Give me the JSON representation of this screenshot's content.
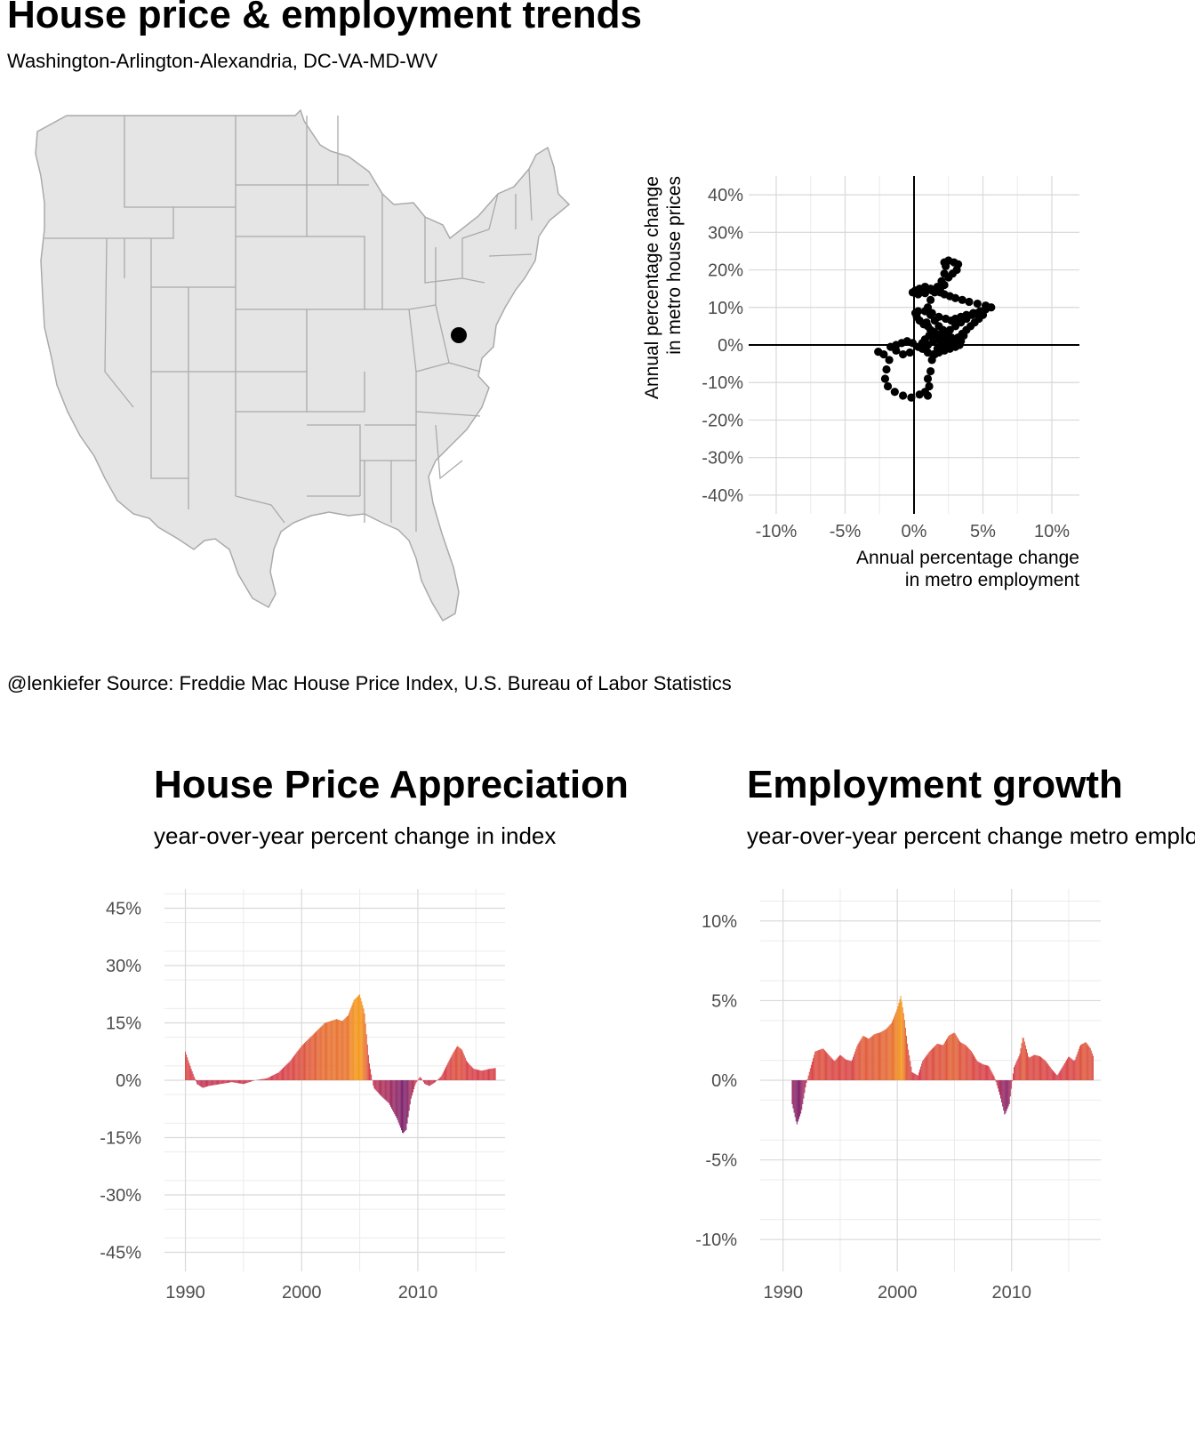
{
  "title": "House price & employment trends",
  "subtitle": "Washington-Arlington-Alexandria, DC-VA-MD-WV",
  "caption": "@lenkiefer Source: Freddie Mac House Price Index, U.S. Bureau of Labor Statistics",
  "colors": {
    "map_fill": "#e5e5e5",
    "map_border": "#aaaaaa",
    "marker": "#000000",
    "bar_low": "#7b1e6a",
    "bar_mid": "#d63c4b",
    "bar_high": "#f59a16"
  },
  "map": {
    "marker_label": "Washington-Arlington-Alexandria, DC-VA-MD-WV"
  },
  "chart_data": [
    {
      "type": "scatter",
      "xlabel": "Annual percentage change\nin metro employment",
      "ylabel": "Annual percentage change\nin metro house prices",
      "xlim": [
        -12,
        12
      ],
      "ylim": [
        -45,
        45
      ],
      "x_ticks": [
        "-10%",
        "-5%",
        "0%",
        "5%",
        "10%"
      ],
      "x_tick_values": [
        -10,
        -5,
        0,
        5,
        10
      ],
      "y_ticks": [
        "40%",
        "30%",
        "20%",
        "10%",
        "0%",
        "-10%",
        "-20%",
        "-30%",
        "-40%"
      ],
      "y_tick_values": [
        40,
        30,
        20,
        10,
        0,
        -10,
        -20,
        -30,
        -40
      ],
      "grid": true,
      "points": [
        [
          -2.6,
          -1.8
        ],
        [
          -2.2,
          -2.5
        ],
        [
          -1.8,
          -4
        ],
        [
          -2.0,
          -6.5
        ],
        [
          -2.1,
          -9
        ],
        [
          -1.9,
          -11
        ],
        [
          -1.4,
          -12.5
        ],
        [
          -0.8,
          -13.5
        ],
        [
          -0.2,
          -14
        ],
        [
          0.4,
          -13.2
        ],
        [
          0.8,
          -12.5
        ],
        [
          1.0,
          -13.5
        ],
        [
          1.1,
          -11
        ],
        [
          1.0,
          -9
        ],
        [
          1.2,
          -7
        ],
        [
          1.3,
          -4
        ],
        [
          1.5,
          -2.5
        ],
        [
          1.7,
          -1
        ],
        [
          1.9,
          0
        ],
        [
          2.2,
          0.5
        ],
        [
          2.5,
          1
        ],
        [
          2.8,
          1.5
        ],
        [
          3.2,
          2
        ],
        [
          3.6,
          2.5
        ],
        [
          3.4,
          1
        ],
        [
          3.0,
          0.5
        ],
        [
          2.4,
          1.5
        ],
        [
          2.0,
          2.5
        ],
        [
          1.6,
          3
        ],
        [
          1.2,
          4
        ],
        [
          1.0,
          5
        ],
        [
          0.9,
          6
        ],
        [
          0.7,
          5.5
        ],
        [
          0.4,
          6.5
        ],
        [
          0.2,
          7.5
        ],
        [
          0.1,
          8.5
        ],
        [
          0.3,
          9
        ],
        [
          0.8,
          9
        ],
        [
          1.3,
          8.5
        ],
        [
          1.8,
          7.5
        ],
        [
          2.3,
          7
        ],
        [
          2.7,
          6.5
        ],
        [
          3.0,
          7
        ],
        [
          3.4,
          7.5
        ],
        [
          3.8,
          8
        ],
        [
          4.3,
          8.5
        ],
        [
          4.8,
          9
        ],
        [
          5.2,
          9.5
        ],
        [
          5.6,
          10
        ],
        [
          5.2,
          10.5
        ],
        [
          4.6,
          11
        ],
        [
          4.0,
          11.5
        ],
        [
          3.5,
          12
        ],
        [
          3.0,
          12.5
        ],
        [
          2.6,
          13
        ],
        [
          2.2,
          13.5
        ],
        [
          1.9,
          14
        ],
        [
          1.6,
          14.5
        ],
        [
          1.2,
          15
        ],
        [
          0.8,
          15.5
        ],
        [
          0.4,
          15
        ],
        [
          0.1,
          14.5
        ],
        [
          -0.1,
          14
        ],
        [
          0.3,
          13.5
        ],
        [
          0.8,
          13.8
        ],
        [
          1.3,
          14.5
        ],
        [
          1.7,
          15.5
        ],
        [
          2.0,
          17
        ],
        [
          2.2,
          19
        ],
        [
          2.3,
          21
        ],
        [
          2.2,
          22
        ],
        [
          2.5,
          22.5
        ],
        [
          2.9,
          22
        ],
        [
          3.2,
          21.5
        ],
        [
          3.1,
          20
        ],
        [
          2.8,
          19
        ],
        [
          2.5,
          18
        ],
        [
          2.2,
          16
        ],
        [
          1.9,
          15
        ],
        [
          1.5,
          14
        ],
        [
          1.2,
          12
        ],
        [
          1.0,
          10
        ],
        [
          1.2,
          8
        ],
        [
          1.5,
          6.5
        ],
        [
          1.8,
          5
        ],
        [
          2.1,
          4
        ],
        [
          2.4,
          3
        ],
        [
          2.7,
          2
        ],
        [
          3.0,
          1
        ],
        [
          3.3,
          0
        ],
        [
          3.0,
          -0.5
        ],
        [
          2.6,
          -1
        ],
        [
          2.2,
          -1.5
        ],
        [
          1.8,
          -2
        ],
        [
          1.4,
          -2.5
        ],
        [
          1.0,
          -2
        ],
        [
          0.7,
          -1
        ],
        [
          0.6,
          0.5
        ],
        [
          0.8,
          1.5
        ],
        [
          1.1,
          2.5
        ],
        [
          1.4,
          3.5
        ],
        [
          1.6,
          2.5
        ],
        [
          1.9,
          1.5
        ],
        [
          2.2,
          0.5
        ],
        [
          2.5,
          -0.5
        ],
        [
          2.8,
          0
        ],
        [
          3.1,
          1
        ],
        [
          3.3,
          2
        ],
        [
          3.5,
          3
        ],
        [
          3.8,
          4
        ],
        [
          4.1,
          5
        ],
        [
          4.4,
          6
        ],
        [
          4.7,
          7
        ],
        [
          5.0,
          8
        ],
        [
          4.6,
          8.5
        ],
        [
          4.2,
          8
        ],
        [
          3.8,
          7
        ],
        [
          3.4,
          6
        ],
        [
          3.0,
          5
        ],
        [
          2.6,
          4
        ],
        [
          2.2,
          3
        ],
        [
          1.8,
          2
        ],
        [
          1.4,
          1
        ],
        [
          1.0,
          0
        ],
        [
          0.6,
          -1
        ],
        [
          0.3,
          -0.5
        ],
        [
          -0.1,
          0.5
        ],
        [
          -0.5,
          1
        ],
        [
          -0.9,
          0.5
        ],
        [
          -1.3,
          0
        ],
        [
          -1.7,
          -0.5
        ],
        [
          -1.3,
          -1.5
        ],
        [
          -0.8,
          -2.5
        ],
        [
          -0.3,
          -2
        ]
      ]
    },
    {
      "type": "bar",
      "title": "House Price Appreciation",
      "subtitle": "year-over-year percent change in index",
      "ylim": [
        -50,
        50
      ],
      "y_ticks": [
        "45%",
        "30%",
        "15%",
        "0%",
        "-15%",
        "-30%",
        "-45%"
      ],
      "y_tick_values": [
        45,
        30,
        15,
        0,
        -15,
        -30,
        -45
      ],
      "x_ticks": [
        "1990",
        "2000",
        "2010"
      ],
      "x_tick_values": [
        1990,
        2000,
        2010
      ],
      "xlim": [
        1988.2,
        2017.5
      ],
      "start": 1990.0,
      "step": 0.0833333,
      "keyframes": [
        [
          1990.0,
          7.5
        ],
        [
          1990.5,
          3
        ],
        [
          1991.0,
          -1
        ],
        [
          1991.5,
          -2
        ],
        [
          1992.0,
          -1.5
        ],
        [
          1993.0,
          -1
        ],
        [
          1994.0,
          -0.5
        ],
        [
          1995.0,
          -1
        ],
        [
          1996.0,
          0
        ],
        [
          1997.0,
          0.5
        ],
        [
          1998.0,
          2
        ],
        [
          1999.0,
          5
        ],
        [
          2000.0,
          9
        ],
        [
          2001.0,
          12
        ],
        [
          2002.0,
          15
        ],
        [
          2003.0,
          16
        ],
        [
          2003.5,
          15.5
        ],
        [
          2004.0,
          17
        ],
        [
          2004.5,
          21
        ],
        [
          2005.0,
          22.5
        ],
        [
          2005.4,
          18
        ],
        [
          2005.8,
          5
        ],
        [
          2006.2,
          -2
        ],
        [
          2006.8,
          -4
        ],
        [
          2007.5,
          -6
        ],
        [
          2008.2,
          -10
        ],
        [
          2008.7,
          -14
        ],
        [
          2009.0,
          -13
        ],
        [
          2009.4,
          -5
        ],
        [
          2009.8,
          -1
        ],
        [
          2010.2,
          1
        ],
        [
          2010.6,
          -1
        ],
        [
          2011.0,
          -1.5
        ],
        [
          2011.5,
          -0.5
        ],
        [
          2012.0,
          1
        ],
        [
          2012.5,
          4
        ],
        [
          2013.0,
          7
        ],
        [
          2013.4,
          9
        ],
        [
          2013.8,
          8
        ],
        [
          2014.2,
          5
        ],
        [
          2014.8,
          3
        ],
        [
          2015.5,
          2.5
        ],
        [
          2016.2,
          3
        ],
        [
          2016.7,
          3.2
        ]
      ]
    },
    {
      "type": "bar",
      "title": "Employment growth",
      "subtitle": "year-over-year percent change metro employment",
      "ylim": [
        -12,
        12
      ],
      "y_ticks": [
        "10%",
        "5%",
        "0%",
        "-5%",
        "-10%"
      ],
      "y_tick_values": [
        10,
        5,
        0,
        -5,
        -10
      ],
      "x_ticks": [
        "1990",
        "2000",
        "2010"
      ],
      "x_tick_values": [
        1990,
        2000,
        2010
      ],
      "xlim": [
        1988.0,
        2017.8
      ],
      "start": 1990.8,
      "step": 0.0833333,
      "keyframes": [
        [
          1990.8,
          -1.5
        ],
        [
          1991.2,
          -2.8
        ],
        [
          1991.6,
          -2
        ],
        [
          1992.0,
          -0.3
        ],
        [
          1992.4,
          0.8
        ],
        [
          1992.8,
          1.8
        ],
        [
          1993.5,
          2
        ],
        [
          1994.0,
          1.6
        ],
        [
          1994.5,
          1.2
        ],
        [
          1995.0,
          1.6
        ],
        [
          1995.5,
          1.3
        ],
        [
          1996.0,
          1.2
        ],
        [
          1996.5,
          2.2
        ],
        [
          1997.0,
          2.8
        ],
        [
          1997.5,
          2.6
        ],
        [
          1998.0,
          2.9
        ],
        [
          1998.5,
          3
        ],
        [
          1999.0,
          3.2
        ],
        [
          1999.5,
          3.6
        ],
        [
          2000.0,
          4.5
        ],
        [
          2000.3,
          5.3
        ],
        [
          2000.6,
          4
        ],
        [
          2000.9,
          2.2
        ],
        [
          2001.3,
          0.5
        ],
        [
          2001.8,
          0.3
        ],
        [
          2002.2,
          1.2
        ],
        [
          2002.8,
          1.8
        ],
        [
          2003.5,
          2.3
        ],
        [
          2004.0,
          2.2
        ],
        [
          2004.5,
          2.8
        ],
        [
          2005.0,
          3
        ],
        [
          2005.5,
          2.4
        ],
        [
          2006.0,
          2.2
        ],
        [
          2006.5,
          1.8
        ],
        [
          2007.0,
          1.2
        ],
        [
          2007.5,
          1
        ],
        [
          2008.0,
          0.9
        ],
        [
          2008.5,
          0.2
        ],
        [
          2009.0,
          -1
        ],
        [
          2009.4,
          -2.2
        ],
        [
          2009.8,
          -1.5
        ],
        [
          2010.2,
          0.8
        ],
        [
          2010.7,
          1.6
        ],
        [
          2011.0,
          2.8
        ],
        [
          2011.5,
          1.4
        ],
        [
          2012.0,
          1.6
        ],
        [
          2012.5,
          1.5
        ],
        [
          2013.0,
          1.2
        ],
        [
          2013.5,
          0.7
        ],
        [
          2014.0,
          0.3
        ],
        [
          2014.5,
          0.9
        ],
        [
          2015.0,
          1.5
        ],
        [
          2015.5,
          1.2
        ],
        [
          2016.0,
          2.2
        ],
        [
          2016.5,
          2.4
        ],
        [
          2016.9,
          2
        ],
        [
          2017.2,
          1.4
        ]
      ]
    }
  ]
}
